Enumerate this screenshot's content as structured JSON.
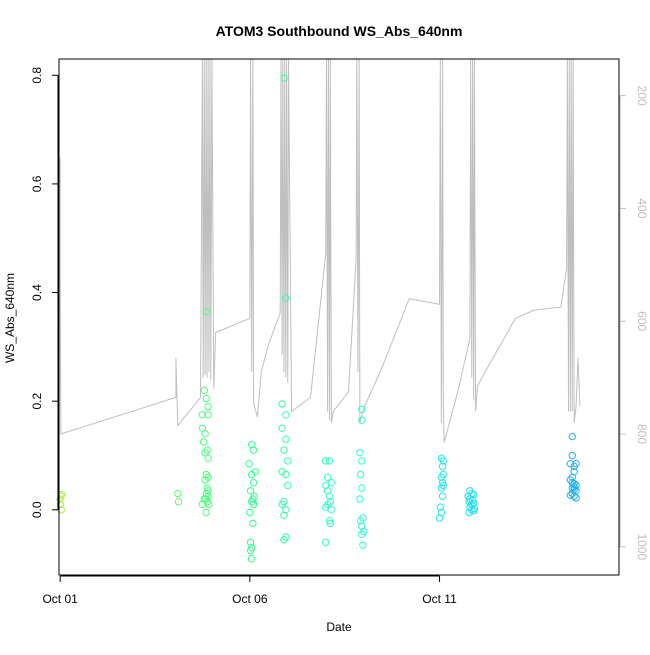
{
  "chart_data": {
    "type": "scatter",
    "title": "ATOM3 Southbound WS_Abs_640nm",
    "xlabel": "Date",
    "ylabel": "WS_Abs_640nm",
    "x_unit": "day of October",
    "xlim": [
      0.97,
      15.73
    ],
    "ylim": [
      -0.12,
      0.83
    ],
    "x_ticks": [
      {
        "value": 1,
        "label": "Oct 01"
      },
      {
        "value": 6,
        "label": "Oct 06"
      },
      {
        "value": 11,
        "label": "Oct 11"
      }
    ],
    "y_ticks": [
      {
        "value": 0.0,
        "label": "0.0"
      },
      {
        "value": 0.2,
        "label": "0.2"
      },
      {
        "value": 0.4,
        "label": "0.4"
      },
      {
        "value": 0.6,
        "label": "0.6"
      },
      {
        "value": 0.8,
        "label": "0.8"
      }
    ],
    "right_axis": {
      "reversed": true,
      "range": [
        1050,
        135
      ],
      "ticks": [
        {
          "value": 200,
          "label": "200"
        },
        {
          "value": 400,
          "label": "400"
        },
        {
          "value": 600,
          "label": "600"
        },
        {
          "value": 800,
          "label": "800"
        },
        {
          "value": 1000,
          "label": "1000"
        }
      ],
      "color": "#bebebe"
    },
    "point_color_ramp": [
      "#aaee44",
      "#66ff66",
      "#33ff88",
      "#33ffcc",
      "#22eeee",
      "#22ccee",
      "#2299ee"
    ],
    "series": [
      {
        "kind": "points",
        "values": [
          [
            1.0,
            0.02
          ],
          [
            1.02,
            0.025
          ],
          [
            1.04,
            0.028
          ],
          [
            1.01,
            0.01
          ],
          [
            1.03,
            0.0
          ],
          [
            4.1,
            0.03
          ],
          [
            4.12,
            0.015
          ],
          [
            4.85,
            0.365
          ],
          [
            4.8,
            0.22
          ],
          [
            4.85,
            0.205
          ],
          [
            4.9,
            0.19
          ],
          [
            4.75,
            0.175
          ],
          [
            4.9,
            0.175
          ],
          [
            4.75,
            0.15
          ],
          [
            4.82,
            0.14
          ],
          [
            4.78,
            0.125
          ],
          [
            4.88,
            0.11
          ],
          [
            4.82,
            0.105
          ],
          [
            4.9,
            0.095
          ],
          [
            4.85,
            0.065
          ],
          [
            4.9,
            0.06
          ],
          [
            4.82,
            0.055
          ],
          [
            4.88,
            0.04
          ],
          [
            4.9,
            0.035
          ],
          [
            4.86,
            0.03
          ],
          [
            4.9,
            0.025
          ],
          [
            4.8,
            0.02
          ],
          [
            4.84,
            0.02
          ],
          [
            4.88,
            0.015
          ],
          [
            4.92,
            0.01
          ],
          [
            4.75,
            0.01
          ],
          [
            4.85,
            -0.005
          ],
          [
            6.05,
            0.12
          ],
          [
            6.1,
            0.11
          ],
          [
            5.98,
            0.085
          ],
          [
            6.15,
            0.07
          ],
          [
            6.05,
            0.065
          ],
          [
            6.1,
            0.05
          ],
          [
            6.02,
            0.035
          ],
          [
            6.12,
            0.025
          ],
          [
            6.08,
            0.02
          ],
          [
            6.05,
            0.015
          ],
          [
            6.1,
            0.01
          ],
          [
            6.0,
            -0.005
          ],
          [
            6.08,
            -0.025
          ],
          [
            6.02,
            -0.06
          ],
          [
            6.05,
            -0.07
          ],
          [
            6.02,
            -0.075
          ],
          [
            6.04,
            -0.09
          ],
          [
            6.9,
            0.795
          ],
          [
            6.95,
            0.39
          ],
          [
            6.85,
            0.195
          ],
          [
            6.95,
            0.175
          ],
          [
            6.85,
            0.15
          ],
          [
            6.95,
            0.13
          ],
          [
            6.9,
            0.11
          ],
          [
            7.0,
            0.09
          ],
          [
            6.85,
            0.07
          ],
          [
            6.95,
            0.065
          ],
          [
            7.0,
            0.045
          ],
          [
            6.9,
            0.015
          ],
          [
            6.85,
            0.01
          ],
          [
            6.95,
            0.0
          ],
          [
            6.9,
            -0.01
          ],
          [
            6.95,
            -0.05
          ],
          [
            6.9,
            -0.055
          ],
          [
            8.0,
            0.09
          ],
          [
            8.1,
            0.09
          ],
          [
            8.05,
            0.06
          ],
          [
            8.15,
            0.05
          ],
          [
            8.0,
            0.045
          ],
          [
            8.05,
            0.035
          ],
          [
            8.1,
            0.025
          ],
          [
            8.12,
            0.015
          ],
          [
            8.05,
            0.01
          ],
          [
            8.0,
            0.005
          ],
          [
            8.15,
            0.0
          ],
          [
            8.1,
            -0.02
          ],
          [
            8.12,
            -0.025
          ],
          [
            8.0,
            -0.06
          ],
          [
            8.95,
            0.185
          ],
          [
            8.95,
            0.165
          ],
          [
            8.9,
            0.105
          ],
          [
            8.95,
            0.09
          ],
          [
            8.92,
            0.065
          ],
          [
            8.95,
            0.04
          ],
          [
            8.9,
            0.02
          ],
          [
            8.98,
            -0.015
          ],
          [
            8.92,
            -0.02
          ],
          [
            8.95,
            -0.03
          ],
          [
            9.0,
            -0.04
          ],
          [
            8.95,
            -0.045
          ],
          [
            8.98,
            -0.065
          ],
          [
            11.05,
            0.095
          ],
          [
            11.1,
            0.09
          ],
          [
            11.08,
            0.08
          ],
          [
            11.1,
            0.065
          ],
          [
            11.05,
            0.06
          ],
          [
            11.08,
            0.05
          ],
          [
            11.1,
            0.045
          ],
          [
            11.05,
            0.04
          ],
          [
            11.08,
            0.025
          ],
          [
            11.02,
            0.005
          ],
          [
            11.05,
            -0.005
          ],
          [
            11.0,
            -0.015
          ],
          [
            11.8,
            0.035
          ],
          [
            11.85,
            0.03
          ],
          [
            11.9,
            0.028
          ],
          [
            11.75,
            0.025
          ],
          [
            11.8,
            0.02
          ],
          [
            11.88,
            0.018
          ],
          [
            11.78,
            0.015
          ],
          [
            11.9,
            0.012
          ],
          [
            11.85,
            0.01
          ],
          [
            11.8,
            0.005
          ],
          [
            11.92,
            0.002
          ],
          [
            11.85,
            0.0
          ],
          [
            11.9,
            -0.002
          ],
          [
            11.78,
            -0.005
          ],
          [
            14.5,
            0.135
          ],
          [
            14.5,
            0.1
          ],
          [
            14.6,
            0.085
          ],
          [
            14.55,
            0.08
          ],
          [
            14.45,
            0.085
          ],
          [
            14.55,
            0.07
          ],
          [
            14.5,
            0.06
          ],
          [
            14.45,
            0.055
          ],
          [
            14.5,
            0.05
          ],
          [
            14.55,
            0.048
          ],
          [
            14.6,
            0.045
          ],
          [
            14.55,
            0.042
          ],
          [
            14.5,
            0.04
          ],
          [
            14.55,
            0.037
          ],
          [
            14.6,
            0.035
          ],
          [
            14.5,
            0.03
          ],
          [
            14.45,
            0.027
          ],
          [
            14.55,
            0.025
          ],
          [
            14.6,
            0.022
          ]
        ]
      },
      {
        "kind": "line",
        "axis": "right",
        "values": [
          [
            1.0,
            310
          ],
          [
            1.0,
            385
          ],
          [
            1.0,
            500
          ],
          [
            1.02,
            800
          ],
          [
            4.05,
            735
          ],
          [
            4.05,
            665
          ],
          [
            4.1,
            785
          ],
          [
            4.7,
            735
          ],
          [
            4.75,
            90
          ],
          [
            4.77,
            700
          ],
          [
            4.8,
            90
          ],
          [
            4.82,
            695
          ],
          [
            4.85,
            90
          ],
          [
            4.87,
            700
          ],
          [
            4.9,
            90
          ],
          [
            4.92,
            690
          ],
          [
            4.95,
            90
          ],
          [
            4.97,
            705
          ],
          [
            5.0,
            90
          ],
          [
            5.05,
            720
          ],
          [
            5.1,
            620
          ],
          [
            6.0,
            595
          ],
          [
            6.02,
            90
          ],
          [
            6.05,
            690
          ],
          [
            6.08,
            90
          ],
          [
            6.1,
            745
          ],
          [
            6.2,
            770
          ],
          [
            6.3,
            690
          ],
          [
            6.5,
            640
          ],
          [
            6.8,
            585
          ],
          [
            6.82,
            90
          ],
          [
            6.85,
            660
          ],
          [
            6.87,
            90
          ],
          [
            6.9,
            690
          ],
          [
            6.92,
            90
          ],
          [
            6.95,
            700
          ],
          [
            6.97,
            90
          ],
          [
            7.0,
            710
          ],
          [
            7.02,
            90
          ],
          [
            7.1,
            760
          ],
          [
            7.6,
            735
          ],
          [
            8.0,
            480
          ],
          [
            8.02,
            90
          ],
          [
            8.05,
            760
          ],
          [
            8.07,
            90
          ],
          [
            8.1,
            775
          ],
          [
            8.12,
            90
          ],
          [
            8.15,
            780
          ],
          [
            8.2,
            760
          ],
          [
            8.6,
            725
          ],
          [
            8.8,
            490
          ],
          [
            8.82,
            90
          ],
          [
            8.85,
            690
          ],
          [
            8.88,
            90
          ],
          [
            8.9,
            780
          ],
          [
            9.0,
            755
          ],
          [
            9.5,
            680
          ],
          [
            10.2,
            560
          ],
          [
            11.0,
            570
          ],
          [
            11.02,
            90
          ],
          [
            11.05,
            780
          ],
          [
            11.08,
            90
          ],
          [
            11.1,
            730
          ],
          [
            11.12,
            815
          ],
          [
            11.5,
            720
          ],
          [
            11.8,
            630
          ],
          [
            11.82,
            90
          ],
          [
            11.85,
            700
          ],
          [
            11.87,
            90
          ],
          [
            11.9,
            740
          ],
          [
            11.92,
            90
          ],
          [
            11.95,
            760
          ],
          [
            12.0,
            715
          ],
          [
            12.2,
            690
          ],
          [
            13.0,
            595
          ],
          [
            13.5,
            580
          ],
          [
            14.2,
            575
          ],
          [
            14.35,
            505
          ],
          [
            14.37,
            90
          ],
          [
            14.4,
            760
          ],
          [
            14.42,
            90
          ],
          [
            14.45,
            760
          ],
          [
            14.47,
            90
          ],
          [
            14.5,
            760
          ],
          [
            14.52,
            90
          ],
          [
            14.55,
            780
          ],
          [
            14.6,
            750
          ],
          [
            14.65,
            665
          ],
          [
            14.7,
            750
          ]
        ]
      }
    ],
    "grid": false,
    "legend": "none"
  }
}
